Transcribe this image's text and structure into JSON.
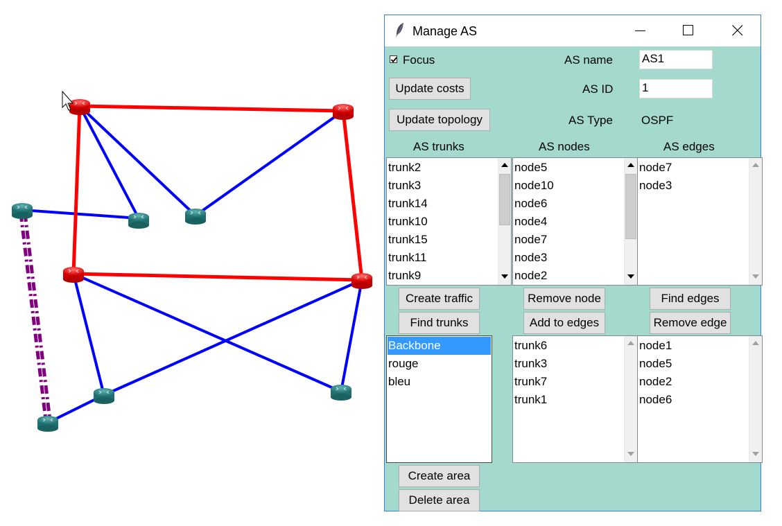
{
  "network": {
    "colors": {
      "red": "#ff0000",
      "blue": "#0000ff",
      "purple": "#800080",
      "router": "#2f8b8b",
      "router_active": "#ff3030"
    }
  },
  "window": {
    "title": "Manage AS",
    "icon": "feather-icon",
    "controls": [
      "minimize-icon",
      "maximize-icon",
      "close-icon"
    ]
  },
  "form": {
    "focus_label": "Focus",
    "focus_checked": true,
    "as_name_label": "AS name",
    "as_name_value": "AS1",
    "update_costs": "Update costs",
    "as_id_label": "AS ID",
    "as_id_value": "1",
    "update_topology": "Update topology",
    "as_type_label": "AS Type",
    "as_type_value": "OSPF"
  },
  "headers": {
    "trunks": "AS trunks",
    "nodes": "AS nodes",
    "edges": "AS edges"
  },
  "as_trunks": [
    "trunk2",
    "trunk3",
    "trunk14",
    "trunk10",
    "trunk15",
    "trunk11",
    "trunk9"
  ],
  "as_nodes": [
    "node5",
    "node10",
    "node6",
    "node4",
    "node7",
    "node3",
    "node2"
  ],
  "as_edges": [
    "node7",
    "node3"
  ],
  "buttons": {
    "create_traffic": "Create traffic",
    "find_trunks": "Find trunks",
    "remove_node": "Remove node",
    "add_to_edges": "Add to edges",
    "find_edges": "Find edges",
    "remove_edge": "Remove edge",
    "create_area": "Create area",
    "delete_area": "Delete area"
  },
  "areas": [
    "Backbone",
    "rouge",
    "bleu"
  ],
  "area_selected": "Backbone",
  "area_trunks": [
    "trunk6",
    "trunk3",
    "trunk7",
    "trunk1"
  ],
  "area_nodes": [
    "node1",
    "node5",
    "node2",
    "node6"
  ]
}
